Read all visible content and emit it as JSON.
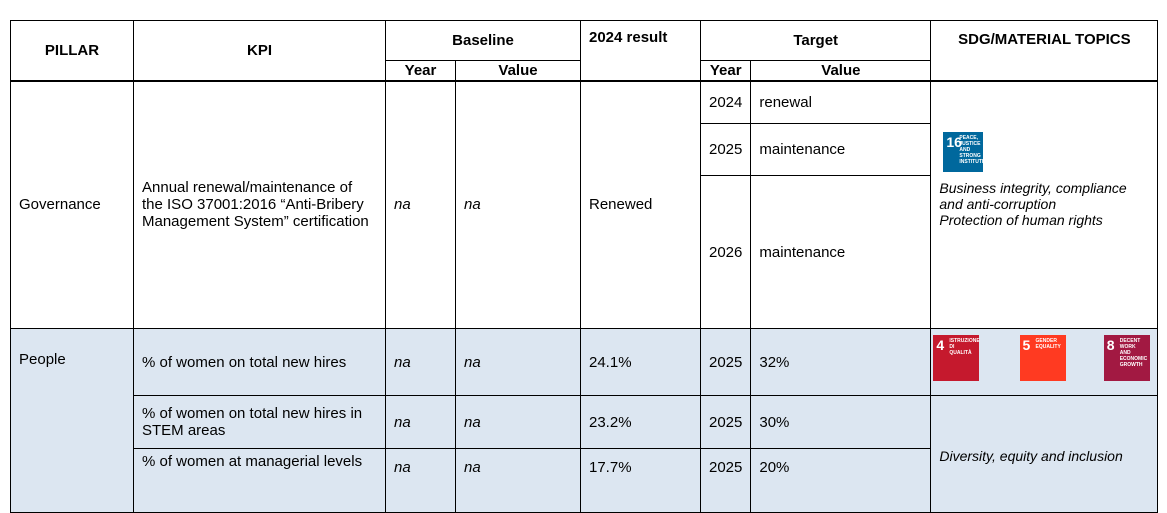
{
  "header": {
    "pillar": "PILLAR",
    "kpi": "KPI",
    "baseline": "Baseline",
    "baseline_year": "Year",
    "baseline_value": "Value",
    "result": "2024 result",
    "target": "Target",
    "target_year": "Year",
    "target_value": "Value",
    "sdg": "SDG/MATERIAL TOPICS"
  },
  "governance": {
    "pillar": "Governance",
    "kpi": "Annual renewal/maintenance of the ISO 37001:2016 “Anti-Bribery Management System” certification",
    "baseline_year": "na",
    "baseline_value": "na",
    "result": "Renewed",
    "targets": [
      {
        "year": "2024",
        "value": "renewal"
      },
      {
        "year": "2025",
        "value": "maintenance"
      },
      {
        "year": "2026",
        "value": "maintenance"
      }
    ],
    "sdg_icons": [
      {
        "number": "16",
        "label": "PEACE, JUSTICE AND STRONG INSTITUTIONS"
      }
    ],
    "topics": [
      "Business integrity, compliance and anti-corruption",
      "Protection of human rights"
    ]
  },
  "people": {
    "pillar": "People",
    "sdg_icons": [
      {
        "number": "4",
        "label": "ISTRUZIONE DI QUALITÀ"
      },
      {
        "number": "5",
        "label": "GENDER EQUALITY"
      },
      {
        "number": "8",
        "label": "DECENT WORK AND ECONOMIC GROWTH"
      }
    ],
    "topics": [
      "Diversity, equity and inclusion"
    ],
    "rows": [
      {
        "kpi": "% of women on total new hires",
        "baseline_year": "na",
        "baseline_value": "na",
        "result": "24.1%",
        "target_year": "2025",
        "target_value": "32%"
      },
      {
        "kpi": "% of women on total new hires in STEM areas",
        "baseline_year": "na",
        "baseline_value": "na",
        "result": "23.2%",
        "target_year": "2025",
        "target_value": "30%"
      },
      {
        "kpi": "% of women at managerial levels",
        "baseline_year": "na",
        "baseline_value": "na",
        "result": "17.7%",
        "target_year": "2025",
        "target_value": "20%"
      }
    ]
  }
}
